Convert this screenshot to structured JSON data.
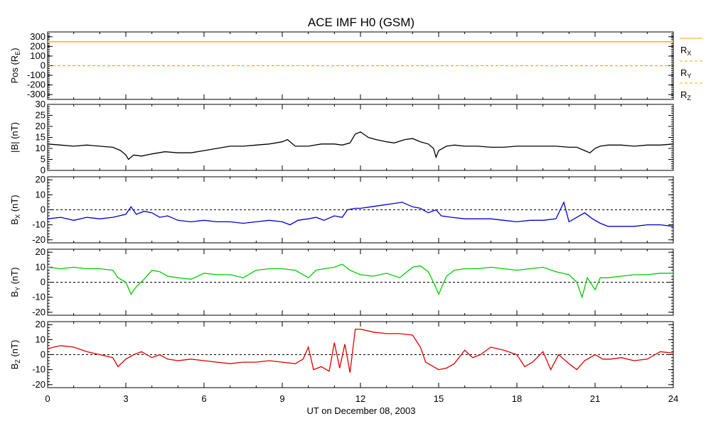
{
  "title": "ACE IMF H0 (GSM)",
  "colors": {
    "pos": "#ffa500",
    "B": "#000000",
    "BX": "#0000cc",
    "BY": "#00cc00",
    "BZ": "#dd0000",
    "ref": "#000000"
  },
  "chart_data": {
    "type": "line",
    "xlabel": "UT on December 08, 2003",
    "xlim": [
      0,
      24
    ],
    "xticks": [
      0,
      3,
      6,
      9,
      12,
      15,
      18,
      21,
      24
    ],
    "xtick_labels": [
      "0",
      "3",
      "6",
      "9",
      "12",
      "15",
      "18",
      "21",
      "24"
    ],
    "panels": [
      {
        "id": "pos",
        "ylabel_main": "Pos (R",
        "ylabel_sub": "E",
        "ylabel_tail": ")",
        "ylim": [
          -350,
          350
        ],
        "yticks": [
          300,
          200,
          100,
          0,
          -100,
          -200,
          -300
        ],
        "ytick_labels": [
          "300",
          "200",
          "100",
          "0",
          "-100",
          "-200",
          "-300"
        ],
        "zero_line": false,
        "legend": [
          {
            "main": "R",
            "sub": "X",
            "dash": false
          },
          {
            "main": "R",
            "sub": "Y",
            "dash": true
          },
          {
            "main": "R",
            "sub": "Z",
            "dash": true
          }
        ],
        "series": [
          {
            "color_key": "pos",
            "x": [
              0,
              24
            ],
            "y": [
              248,
              248
            ]
          },
          {
            "color_key": "pos",
            "dash": true,
            "x": [
              0,
              24
            ],
            "y": [
              0,
              0
            ]
          }
        ]
      },
      {
        "id": "B",
        "ylabel_main": "|B| (nT)",
        "ylabel_sub": "",
        "ylabel_tail": "",
        "ylim": [
          0,
          30
        ],
        "yticks": [
          30,
          25,
          20,
          15,
          10,
          5,
          0
        ],
        "ytick_labels": [
          "30",
          "25",
          "20",
          "15",
          "10",
          "5",
          "0"
        ],
        "zero_line": false,
        "series": [
          {
            "color_key": "B",
            "x": [
              0,
              0.5,
              1,
              1.5,
              2,
              2.5,
              2.8,
              3.0,
              3.1,
              3.3,
              3.6,
              4.0,
              4.5,
              5.0,
              5.5,
              6.0,
              6.5,
              7.0,
              7.5,
              8.0,
              8.5,
              9.0,
              9.2,
              9.5,
              10.0,
              10.5,
              11.0,
              11.3,
              11.6,
              11.8,
              12.0,
              12.3,
              12.6,
              13.0,
              13.3,
              13.7,
              14.0,
              14.3,
              14.6,
              14.8,
              14.9,
              15.0,
              15.3,
              15.6,
              16.0,
              16.5,
              17.0,
              17.5,
              18.0,
              18.5,
              19.0,
              19.5,
              20.0,
              20.3,
              20.6,
              20.8,
              21.0,
              21.2,
              21.5,
              22.0,
              22.5,
              23.0,
              23.5,
              24.0
            ],
            "y": [
              12,
              11.5,
              11,
              11.5,
              11,
              10.5,
              9,
              7,
              5,
              7,
              6.5,
              7.5,
              8.5,
              8,
              8,
              9,
              10,
              11,
              11,
              11.5,
              12,
              13,
              14,
              11,
              11,
              12,
              12,
              11.5,
              12.5,
              16.5,
              17.5,
              15,
              14,
              13,
              12.5,
              14,
              14.5,
              13,
              12,
              10,
              6,
              9,
              11,
              11.5,
              11,
              11,
              10.5,
              10.5,
              11,
              11,
              11,
              11,
              10.5,
              10.5,
              9,
              8,
              10,
              11,
              11.5,
              11.5,
              11,
              11.5,
              11.5,
              12
            ]
          }
        ]
      },
      {
        "id": "BX",
        "ylabel_main": "B",
        "ylabel_sub": "X",
        "ylabel_tail": " (nT)",
        "ylim": [
          -22,
          22
        ],
        "yticks": [
          20,
          10,
          0,
          -10,
          -20
        ],
        "ytick_labels": [
          "20",
          "10",
          "0",
          "-10",
          "-20"
        ],
        "zero_line": true,
        "series": [
          {
            "color_key": "BX",
            "x": [
              0,
              0.5,
              1,
              1.5,
              2,
              2.5,
              3.0,
              3.2,
              3.4,
              3.7,
              4.0,
              4.3,
              4.6,
              5.0,
              5.5,
              6.0,
              6.5,
              7.0,
              7.5,
              8.0,
              8.5,
              9.0,
              9.3,
              9.6,
              10.0,
              10.3,
              10.6,
              11.0,
              11.3,
              11.5,
              11.8,
              12.0,
              12.4,
              12.8,
              13.2,
              13.6,
              14.0,
              14.3,
              14.6,
              14.9,
              15.1,
              15.5,
              16.0,
              16.5,
              17.0,
              17.5,
              18.0,
              18.5,
              19.0,
              19.5,
              19.8,
              20.0,
              20.3,
              20.6,
              20.9,
              21.2,
              21.5,
              22.0,
              22.5,
              23.0,
              23.5,
              24.0
            ],
            "y": [
              -6,
              -5,
              -7,
              -5,
              -6,
              -5,
              -3,
              2,
              -3,
              -1,
              -2,
              -5,
              -4,
              -7,
              -8,
              -7,
              -8,
              -8,
              -9,
              -8,
              -7,
              -8,
              -10,
              -7,
              -6,
              -5,
              -7,
              -4,
              -5,
              0,
              1,
              1,
              2,
              3,
              4,
              5,
              2,
              1,
              -2,
              0,
              -4,
              -5,
              -6,
              -6,
              -6,
              -7,
              -8,
              -7,
              -7,
              -6,
              5,
              -8,
              -5,
              -2,
              -6,
              -9,
              -11,
              -11,
              -11,
              -10,
              -10,
              -11
            ]
          }
        ]
      },
      {
        "id": "BY",
        "ylabel_main": "B",
        "ylabel_sub": "Y",
        "ylabel_tail": " (nT)",
        "ylim": [
          -22,
          22
        ],
        "yticks": [
          20,
          10,
          0,
          -10,
          -20
        ],
        "ytick_labels": [
          "20",
          "10",
          "0",
          "-10",
          "-20"
        ],
        "zero_line": true,
        "series": [
          {
            "color_key": "BY",
            "x": [
              0,
              0.5,
              1,
              1.5,
              2,
              2.5,
              2.7,
              3.0,
              3.2,
              3.4,
              3.7,
              4.0,
              4.3,
              4.6,
              5.0,
              5.5,
              6.0,
              6.5,
              7.0,
              7.5,
              8.0,
              8.5,
              9.0,
              9.5,
              10.0,
              10.3,
              10.6,
              11.0,
              11.3,
              11.6,
              12.0,
              12.5,
              13.0,
              13.5,
              14.0,
              14.3,
              14.6,
              14.8,
              15.0,
              15.3,
              15.6,
              16.0,
              16.5,
              17.0,
              17.5,
              18.0,
              18.5,
              19.0,
              19.5,
              20.0,
              20.3,
              20.5,
              20.7,
              21.0,
              21.2,
              21.5,
              22.0,
              22.5,
              23.0,
              23.5,
              24.0
            ],
            "y": [
              10,
              9,
              10,
              9,
              9,
              8,
              3,
              0,
              -8,
              -3,
              2,
              8,
              7,
              4,
              3,
              2,
              6,
              5,
              5,
              3,
              8,
              9,
              9,
              8,
              3,
              8,
              9,
              10,
              12,
              8,
              5,
              4,
              6,
              3,
              10,
              11,
              7,
              0,
              -8,
              4,
              8,
              9,
              9,
              10,
              9,
              8,
              9,
              10,
              7,
              5,
              0,
              -10,
              3,
              -5,
              3,
              3,
              4,
              5,
              5,
              6,
              6
            ]
          }
        ]
      },
      {
        "id": "BZ",
        "ylabel_main": "B",
        "ylabel_sub": "Z",
        "ylabel_tail": " (nT)",
        "ylim": [
          -22,
          22
        ],
        "yticks": [
          20,
          10,
          0,
          -10,
          -20
        ],
        "ytick_labels": [
          "20",
          "10",
          "0",
          "-10",
          "-20"
        ],
        "zero_line": true,
        "series": [
          {
            "color_key": "BZ",
            "x": [
              0,
              0.5,
              1,
              1.5,
              2,
              2.5,
              2.7,
              3.0,
              3.3,
              3.6,
              4.0,
              4.3,
              4.6,
              5.0,
              5.5,
              6.0,
              6.5,
              7.0,
              7.5,
              8.0,
              8.5,
              9.0,
              9.5,
              9.8,
              10.0,
              10.2,
              10.5,
              10.8,
              11.0,
              11.2,
              11.4,
              11.6,
              11.8,
              12.0,
              12.5,
              13.0,
              13.5,
              14.0,
              14.3,
              14.5,
              14.8,
              15.0,
              15.3,
              15.6,
              16.0,
              16.3,
              16.6,
              17.0,
              17.5,
              18.0,
              18.3,
              18.6,
              19.0,
              19.3,
              19.6,
              20.0,
              20.3,
              20.6,
              21.0,
              21.3,
              21.6,
              22.0,
              22.5,
              23.0,
              23.5,
              24.0
            ],
            "y": [
              4,
              6,
              5,
              2,
              0,
              -2,
              -8,
              -3,
              0,
              2,
              -2,
              0,
              -3,
              -4,
              -3,
              -4,
              -5,
              -6,
              -5,
              -5,
              -4,
              -5,
              -6,
              -3,
              5,
              -10,
              -8,
              -11,
              8,
              -9,
              7,
              -12,
              17,
              17,
              15,
              14,
              14,
              13,
              5,
              -5,
              -8,
              -10,
              -9,
              -6,
              3,
              -2,
              0,
              5,
              3,
              0,
              -8,
              -5,
              2,
              -10,
              0,
              -6,
              -10,
              -4,
              0,
              -3,
              -3,
              -2,
              -4,
              -3,
              2,
              1
            ]
          }
        ]
      }
    ]
  }
}
